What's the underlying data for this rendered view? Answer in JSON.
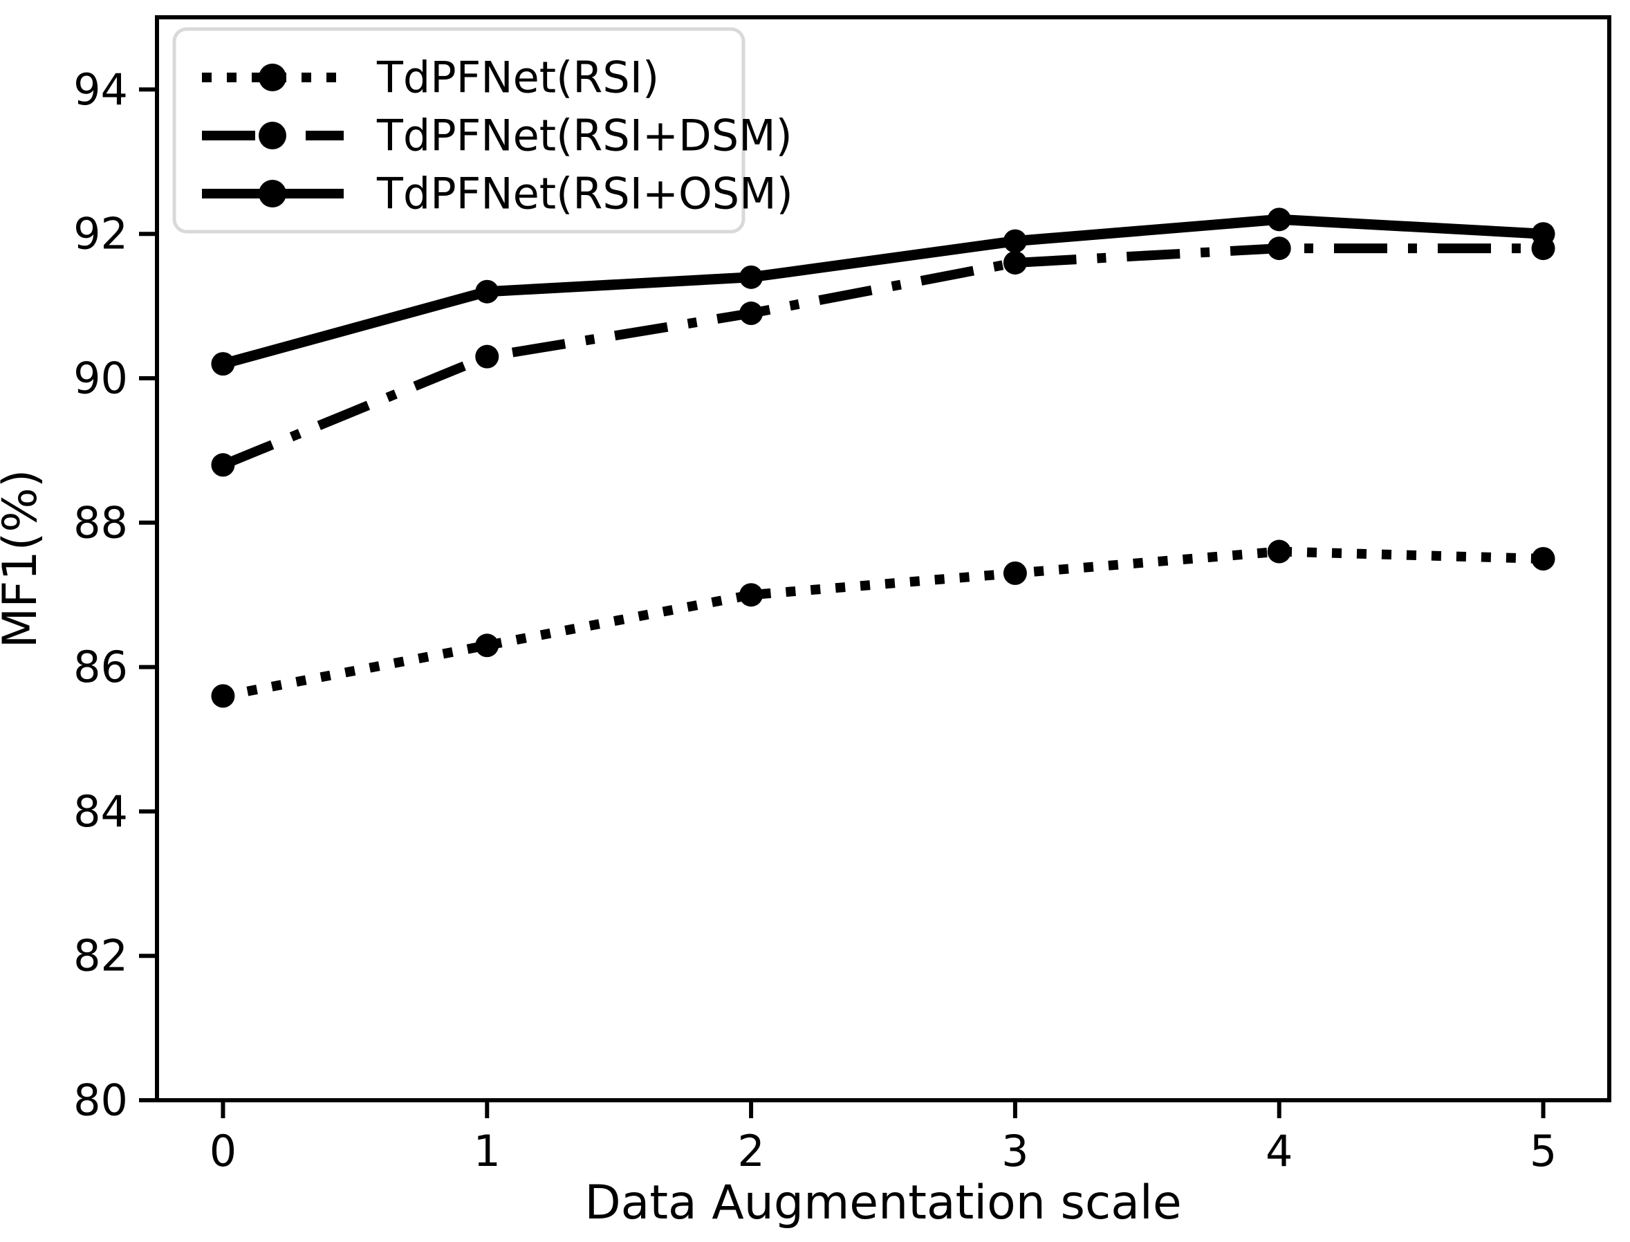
{
  "chart_data": {
    "type": "line",
    "title": "",
    "xlabel": "Data Augmentation scale",
    "ylabel": "MF1(%)",
    "x": [
      0,
      1,
      2,
      3,
      4,
      5
    ],
    "xticks": [
      "0",
      "1",
      "2",
      "3",
      "4",
      "5"
    ],
    "yticks": [
      "80",
      "82",
      "84",
      "86",
      "88",
      "90",
      "92",
      "94"
    ],
    "ytick_values": [
      80,
      82,
      84,
      86,
      88,
      90,
      92,
      94
    ],
    "xlim": [
      -0.25,
      5.25
    ],
    "ylim": [
      80,
      95
    ],
    "grid": false,
    "legend_position": "upper left",
    "line_color": "#000000",
    "legend_border_color": "#d9d9d9",
    "series": [
      {
        "name": "TdPFNet(RSI)",
        "style": "dotted",
        "marker": "circle",
        "color": "#000000",
        "values": [
          85.6,
          86.3,
          87.0,
          87.3,
          87.6,
          87.5
        ]
      },
      {
        "name": "TdPFNet(RSI+DSM)",
        "style": "dashdot",
        "marker": "circle",
        "color": "#000000",
        "values": [
          88.8,
          90.3,
          90.9,
          91.6,
          91.8,
          91.8
        ]
      },
      {
        "name": "TdPFNet(RSI+OSM)",
        "style": "solid",
        "marker": "circle",
        "color": "#000000",
        "values": [
          90.2,
          91.2,
          91.4,
          91.9,
          92.2,
          92.0
        ]
      }
    ]
  }
}
